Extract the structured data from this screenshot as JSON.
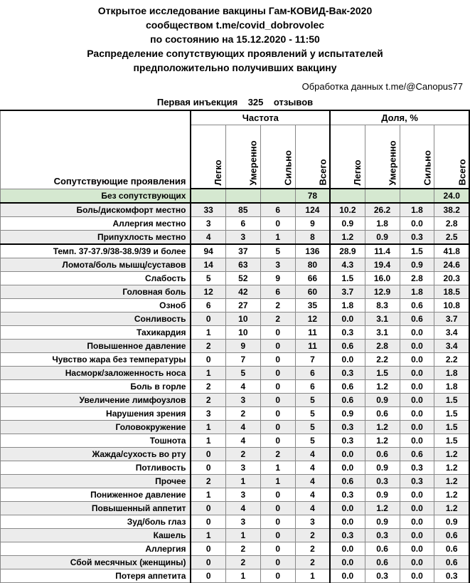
{
  "header": {
    "line1": "Открытое исследование вакцины Гам-КОВИД-Вак-2020",
    "line2": "сообществом t.me/covid_dobrovolec",
    "line3": "по состоянию на 15.12.2020 - 11:50",
    "line4": "Распределение сопутствующих проявлений у испытателей",
    "line5": "предположительно получивших вакцину",
    "dataproc": "Обработка данных t.me/@Canopus77",
    "sub_label": "Первая инъекция",
    "sub_count": "325",
    "sub_suffix": "отзывов"
  },
  "columns": {
    "freq_group": "Частота",
    "pct_group": "Доля, %",
    "rowheader": "Сопутствующие проявления",
    "c1": "Легко",
    "c2": "Умеренно",
    "c3": "Сильно",
    "c4": "Всего",
    "p1": "Легко",
    "p2": "Умеренно",
    "p3": "Сильно",
    "p4": "Всего"
  },
  "style": {
    "zebra_bg": "#ececec",
    "highlight_bg": "#d5e8d0",
    "font_size": 12,
    "header_fontsize": 14
  },
  "rows": [
    {
      "label": "Без сопутствующих",
      "v": [
        "",
        "",
        "",
        "78",
        "",
        "",
        "",
        "24.0"
      ],
      "highlight": true,
      "sep_below": true
    },
    {
      "label": "Боль/дискомфорт местно",
      "v": [
        "33",
        "85",
        "6",
        "124",
        "10.2",
        "26.2",
        "1.8",
        "38.2"
      ],
      "zebra": true
    },
    {
      "label": "Аллергия местно",
      "v": [
        "3",
        "6",
        "0",
        "9",
        "0.9",
        "1.8",
        "0.0",
        "2.8"
      ]
    },
    {
      "label": "Припухлость местно",
      "v": [
        "4",
        "3",
        "1",
        "8",
        "1.2",
        "0.9",
        "0.3",
        "2.5"
      ],
      "zebra": true,
      "sep_below": true
    },
    {
      "label": "Темп. 37-37.9/38-38.9/39 и более",
      "v": [
        "94",
        "37",
        "5",
        "136",
        "28.9",
        "11.4",
        "1.5",
        "41.8"
      ]
    },
    {
      "label": "Ломота/боль мышц/суставов",
      "v": [
        "14",
        "63",
        "3",
        "80",
        "4.3",
        "19.4",
        "0.9",
        "24.6"
      ],
      "zebra": true
    },
    {
      "label": "Слабость",
      "v": [
        "5",
        "52",
        "9",
        "66",
        "1.5",
        "16.0",
        "2.8",
        "20.3"
      ]
    },
    {
      "label": "Головная боль",
      "v": [
        "12",
        "42",
        "6",
        "60",
        "3.7",
        "12.9",
        "1.8",
        "18.5"
      ],
      "zebra": true
    },
    {
      "label": "Озноб",
      "v": [
        "6",
        "27",
        "2",
        "35",
        "1.8",
        "8.3",
        "0.6",
        "10.8"
      ]
    },
    {
      "label": "Сонливость",
      "v": [
        "0",
        "10",
        "2",
        "12",
        "0.0",
        "3.1",
        "0.6",
        "3.7"
      ],
      "zebra": true
    },
    {
      "label": "Тахикардия",
      "v": [
        "1",
        "10",
        "0",
        "11",
        "0.3",
        "3.1",
        "0.0",
        "3.4"
      ]
    },
    {
      "label": "Повышенное давление",
      "v": [
        "2",
        "9",
        "0",
        "11",
        "0.6",
        "2.8",
        "0.0",
        "3.4"
      ],
      "zebra": true
    },
    {
      "label": "Чувство жара без температуры",
      "v": [
        "0",
        "7",
        "0",
        "7",
        "0.0",
        "2.2",
        "0.0",
        "2.2"
      ]
    },
    {
      "label": "Насморк/заложенность носа",
      "v": [
        "1",
        "5",
        "0",
        "6",
        "0.3",
        "1.5",
        "0.0",
        "1.8"
      ],
      "zebra": true
    },
    {
      "label": "Боль в горле",
      "v": [
        "2",
        "4",
        "0",
        "6",
        "0.6",
        "1.2",
        "0.0",
        "1.8"
      ]
    },
    {
      "label": "Увеличение лимфоузлов",
      "v": [
        "2",
        "3",
        "0",
        "5",
        "0.6",
        "0.9",
        "0.0",
        "1.5"
      ],
      "zebra": true
    },
    {
      "label": "Нарушения зрения",
      "v": [
        "3",
        "2",
        "0",
        "5",
        "0.9",
        "0.6",
        "0.0",
        "1.5"
      ]
    },
    {
      "label": "Головокружение",
      "v": [
        "1",
        "4",
        "0",
        "5",
        "0.3",
        "1.2",
        "0.0",
        "1.5"
      ],
      "zebra": true
    },
    {
      "label": "Тошнота",
      "v": [
        "1",
        "4",
        "0",
        "5",
        "0.3",
        "1.2",
        "0.0",
        "1.5"
      ]
    },
    {
      "label": "Жажда/сухость во рту",
      "v": [
        "0",
        "2",
        "2",
        "4",
        "0.0",
        "0.6",
        "0.6",
        "1.2"
      ],
      "zebra": true
    },
    {
      "label": "Потливость",
      "v": [
        "0",
        "3",
        "1",
        "4",
        "0.0",
        "0.9",
        "0.3",
        "1.2"
      ]
    },
    {
      "label": "Прочее",
      "v": [
        "2",
        "1",
        "1",
        "4",
        "0.6",
        "0.3",
        "0.3",
        "1.2"
      ],
      "zebra": true
    },
    {
      "label": "Пониженное давление",
      "v": [
        "1",
        "3",
        "0",
        "4",
        "0.3",
        "0.9",
        "0.0",
        "1.2"
      ]
    },
    {
      "label": "Повышенный аппетит",
      "v": [
        "0",
        "4",
        "0",
        "4",
        "0.0",
        "1.2",
        "0.0",
        "1.2"
      ],
      "zebra": true
    },
    {
      "label": "Зуд/боль глаз",
      "v": [
        "0",
        "3",
        "0",
        "3",
        "0.0",
        "0.9",
        "0.0",
        "0.9"
      ]
    },
    {
      "label": "Кашель",
      "v": [
        "1",
        "1",
        "0",
        "2",
        "0.3",
        "0.3",
        "0.0",
        "0.6"
      ],
      "zebra": true
    },
    {
      "label": "Аллергия",
      "v": [
        "0",
        "2",
        "0",
        "2",
        "0.0",
        "0.6",
        "0.0",
        "0.6"
      ]
    },
    {
      "label": "Сбой месячных (женщины)",
      "v": [
        "0",
        "2",
        "0",
        "2",
        "0.0",
        "0.6",
        "0.0",
        "0.6"
      ],
      "zebra": true
    },
    {
      "label": "Потеря аппетита",
      "v": [
        "0",
        "1",
        "0",
        "1",
        "0.0",
        "0.3",
        "0.0",
        "0.3"
      ]
    }
  ]
}
